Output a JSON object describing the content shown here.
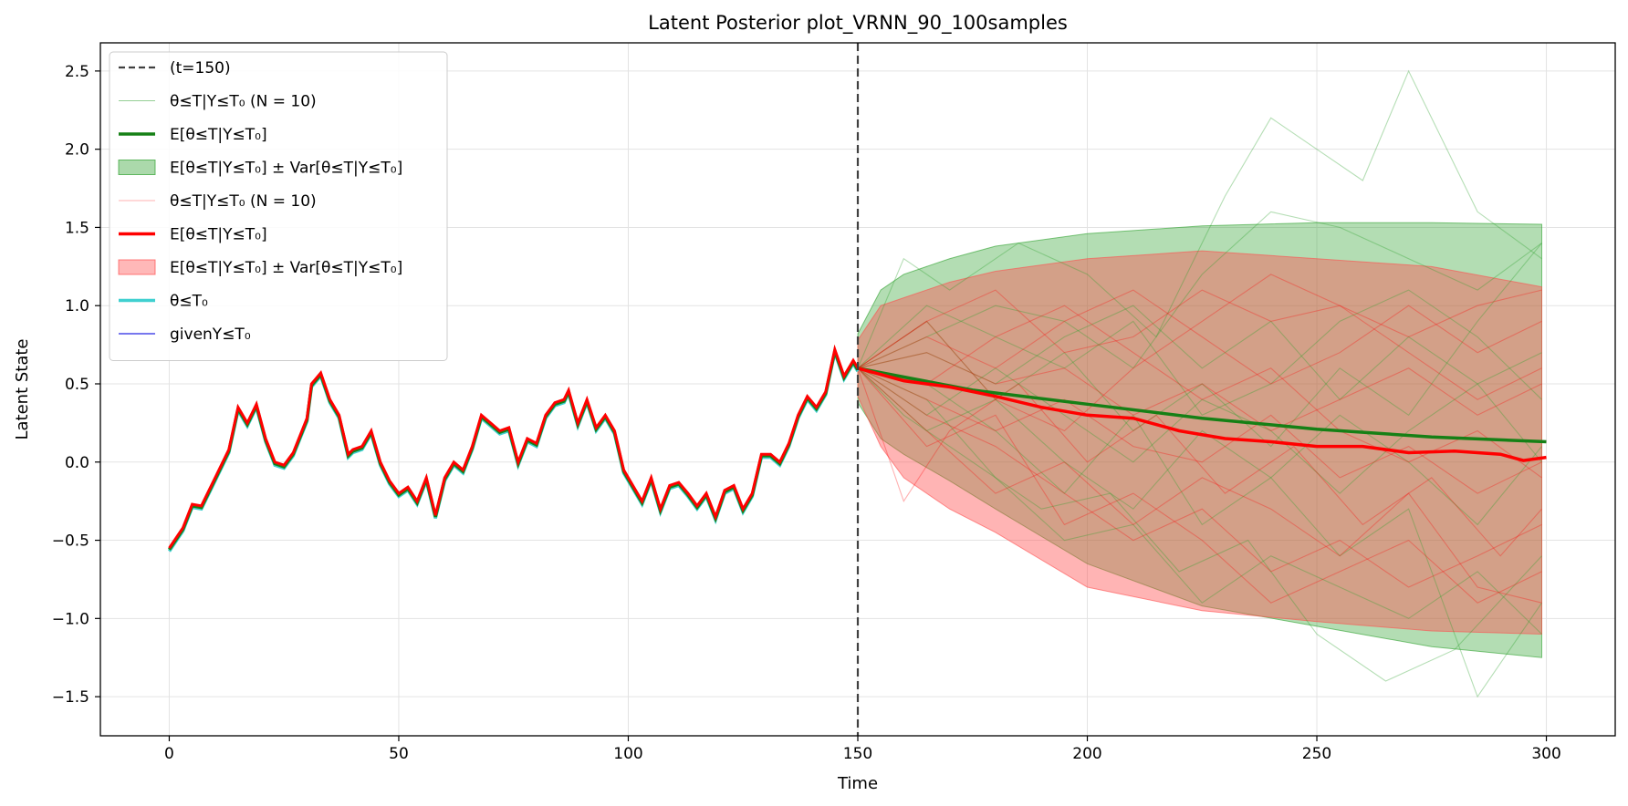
{
  "chart_data": {
    "type": "line",
    "title": "Latent Posterior plot_VRNN_90_100samples",
    "xlabel": "Time",
    "ylabel": "Latent State",
    "xlim": [
      -15,
      315
    ],
    "ylim": [
      -1.75,
      2.68
    ],
    "x_ticks": [
      0,
      50,
      100,
      150,
      200,
      250,
      300
    ],
    "x_tick_labels": [
      "0",
      "50",
      "100",
      "150",
      "200",
      "250",
      "300"
    ],
    "y_ticks": [
      -1.5,
      -1.0,
      -0.5,
      0.0,
      0.5,
      1.0,
      1.5,
      2.0,
      2.5
    ],
    "y_tick_labels": [
      "−1.5",
      "−1.0",
      "−0.5",
      "0.0",
      "0.5",
      "1.0",
      "1.5",
      "2.0",
      "2.5"
    ],
    "grid": true,
    "legend_position": "upper-left",
    "vline": {
      "x": 150,
      "label": "(t=150)",
      "color": "#404040"
    },
    "legend": [
      {
        "kind": "dashed",
        "color": "#404040",
        "label": "(t=150)"
      },
      {
        "kind": "thin",
        "color": "#2ca02c",
        "label": "θ≤T|Y≤T₀ (N = 10)"
      },
      {
        "kind": "thick",
        "color": "#168016",
        "label": "E[θ≤T|Y≤T₀]"
      },
      {
        "kind": "patch",
        "color": "#2ca02c",
        "label": "E[θ≤T|Y≤T₀] ± Var[θ≤T|Y≤T₀]"
      },
      {
        "kind": "thin",
        "color": "#ff6666",
        "label": "θ≤T|Y≤T₀ (N = 10)"
      },
      {
        "kind": "thick",
        "color": "#ff0000",
        "label": "E[θ≤T|Y≤T₀]"
      },
      {
        "kind": "patch",
        "color": "#ff4d4d",
        "label": "E[θ≤T|Y≤T₀] ± Var[θ≤T|Y≤T₀]"
      },
      {
        "kind": "thick",
        "color": "#40d0d0",
        "label": "θ≤T₀"
      },
      {
        "kind": "medium",
        "color": "#7777ee",
        "label": "givenY≤T₀"
      }
    ],
    "colors": {
      "green_mean": "#168016",
      "green_band": "#2ca02c",
      "red_mean": "#ff0000",
      "red_band": "#ff4d4d",
      "cyan": "#40d0d0",
      "blue": "#7777ee",
      "vline": "#404040"
    },
    "observed": {
      "x": [
        0,
        3,
        5,
        7,
        10,
        13,
        15,
        17,
        19,
        21,
        23,
        25,
        27,
        30,
        31,
        33,
        35,
        37,
        39,
        40,
        42,
        44,
        46,
        48,
        50,
        52,
        54,
        56,
        58,
        60,
        62,
        64,
        66,
        68,
        70,
        72,
        74,
        76,
        78,
        80,
        82,
        84,
        86,
        87,
        89,
        91,
        93,
        95,
        97,
        99,
        101,
        103,
        105,
        107,
        109,
        111,
        113,
        115,
        117,
        119,
        121,
        123,
        125,
        127,
        129,
        131,
        133,
        135,
        137,
        139,
        141,
        143,
        145,
        147,
        149,
        150
      ],
      "y": [
        -0.55,
        -0.42,
        -0.27,
        -0.28,
        -0.1,
        0.08,
        0.35,
        0.25,
        0.37,
        0.15,
        0.0,
        -0.02,
        0.06,
        0.28,
        0.5,
        0.57,
        0.4,
        0.3,
        0.05,
        0.08,
        0.1,
        0.2,
        0.0,
        -0.12,
        -0.2,
        -0.16,
        -0.25,
        -0.1,
        -0.34,
        -0.1,
        0.0,
        -0.05,
        0.1,
        0.3,
        0.25,
        0.2,
        0.22,
        0.0,
        0.15,
        0.12,
        0.3,
        0.38,
        0.4,
        0.46,
        0.25,
        0.4,
        0.22,
        0.3,
        0.2,
        -0.05,
        -0.15,
        -0.25,
        -0.1,
        -0.3,
        -0.15,
        -0.13,
        -0.2,
        -0.28,
        -0.2,
        -0.35,
        -0.18,
        -0.15,
        -0.3,
        -0.2,
        0.05,
        0.05,
        0.0,
        0.12,
        0.3,
        0.42,
        0.35,
        0.45,
        0.72,
        0.55,
        0.65,
        0.6
      ]
    },
    "green_mean": {
      "x": [
        150,
        175,
        200,
        225,
        250,
        275,
        300
      ],
      "y": [
        0.6,
        0.46,
        0.37,
        0.28,
        0.21,
        0.16,
        0.13
      ]
    },
    "green_band": {
      "x": [
        150,
        155,
        160,
        170,
        180,
        200,
        225,
        250,
        275,
        299
      ],
      "upper": [
        0.82,
        1.1,
        1.2,
        1.3,
        1.38,
        1.46,
        1.51,
        1.53,
        1.53,
        1.52
      ],
      "lower": [
        0.38,
        0.15,
        0.05,
        -0.12,
        -0.3,
        -0.65,
        -0.92,
        -1.05,
        -1.18,
        -1.25
      ]
    },
    "red_mean": {
      "x": [
        150,
        160,
        170,
        180,
        190,
        200,
        210,
        220,
        230,
        240,
        250,
        260,
        270,
        280,
        290,
        295,
        300
      ],
      "y": [
        0.6,
        0.52,
        0.48,
        0.42,
        0.35,
        0.3,
        0.28,
        0.2,
        0.15,
        0.13,
        0.1,
        0.1,
        0.06,
        0.07,
        0.05,
        0.01,
        0.03
      ]
    },
    "red_band": {
      "x": [
        150,
        155,
        160,
        170,
        180,
        200,
        225,
        250,
        275,
        299
      ],
      "upper": [
        0.78,
        1.0,
        1.05,
        1.15,
        1.22,
        1.3,
        1.35,
        1.3,
        1.25,
        1.12
      ],
      "lower": [
        0.42,
        0.1,
        -0.1,
        -0.3,
        -0.45,
        -0.8,
        -0.95,
        -1.02,
        -1.08,
        -1.1
      ]
    },
    "green_samples": [
      {
        "x": [
          150,
          160,
          170,
          185,
          200,
          215,
          230,
          240,
          250,
          260,
          270,
          285,
          299
        ],
        "y": [
          0.6,
          1.3,
          1.1,
          1.4,
          1.2,
          0.8,
          1.7,
          2.2,
          2.0,
          1.8,
          2.5,
          1.6,
          1.3
        ]
      },
      {
        "x": [
          150,
          165,
          180,
          195,
          210,
          225,
          240,
          255,
          270,
          285,
          299
        ],
        "y": [
          0.6,
          0.9,
          0.4,
          0.7,
          0.2,
          0.5,
          0.1,
          0.6,
          0.3,
          0.9,
          1.4
        ]
      },
      {
        "x": [
          150,
          160,
          175,
          190,
          205,
          220,
          235,
          250,
          265,
          280,
          299
        ],
        "y": [
          0.6,
          0.3,
          0.0,
          -0.3,
          -0.2,
          -0.7,
          -0.5,
          -1.1,
          -1.4,
          -1.2,
          -0.6
        ]
      },
      {
        "x": [
          150,
          165,
          180,
          195,
          210,
          225,
          240,
          255,
          270,
          285,
          299
        ],
        "y": [
          0.6,
          0.5,
          0.2,
          -0.2,
          0.3,
          -0.4,
          -0.1,
          -0.6,
          -0.3,
          -1.5,
          -0.9
        ]
      },
      {
        "x": [
          150,
          165,
          180,
          195,
          210,
          225,
          240,
          255,
          270,
          285,
          299
        ],
        "y": [
          0.6,
          0.8,
          1.0,
          0.9,
          0.6,
          1.2,
          1.6,
          1.5,
          1.3,
          1.1,
          1.4
        ]
      },
      {
        "x": [
          150,
          165,
          180,
          195,
          210,
          225,
          240,
          255,
          270,
          285,
          299
        ],
        "y": [
          0.6,
          0.2,
          0.4,
          0.0,
          -0.3,
          0.2,
          -0.1,
          0.3,
          0.0,
          -0.4,
          0.1
        ]
      },
      {
        "x": [
          150,
          165,
          180,
          195,
          210,
          225,
          240,
          255,
          270,
          285,
          299
        ],
        "y": [
          0.6,
          0.7,
          0.5,
          0.8,
          1.0,
          0.6,
          0.9,
          0.4,
          0.8,
          0.5,
          0.7
        ]
      },
      {
        "x": [
          150,
          165,
          180,
          195,
          210,
          225,
          240,
          255,
          270,
          285,
          299
        ],
        "y": [
          0.6,
          0.4,
          -0.1,
          -0.5,
          -0.4,
          -0.9,
          -0.6,
          -0.8,
          -1.0,
          -0.7,
          -1.1
        ]
      },
      {
        "x": [
          150,
          165,
          180,
          195,
          210,
          225,
          240,
          255,
          270,
          285,
          299
        ],
        "y": [
          0.6,
          1.0,
          0.8,
          0.6,
          0.9,
          0.3,
          0.5,
          0.9,
          1.1,
          0.8,
          0.4
        ]
      },
      {
        "x": [
          150,
          165,
          180,
          195,
          210,
          225,
          240,
          255,
          270,
          285,
          299
        ],
        "y": [
          0.6,
          0.3,
          0.6,
          0.3,
          0.0,
          0.4,
          0.2,
          -0.2,
          0.2,
          0.5,
          0.0
        ]
      }
    ],
    "red_samples": [
      {
        "x": [
          150,
          160,
          170,
          185,
          200,
          215,
          230,
          245,
          260,
          275,
          290,
          299
        ],
        "y": [
          0.6,
          -0.25,
          0.2,
          0.5,
          0.0,
          0.3,
          -0.2,
          0.1,
          -0.4,
          -0.1,
          -0.6,
          -0.3
        ]
      },
      {
        "x": [
          150,
          165,
          180,
          195,
          210,
          225,
          240,
          255,
          270,
          285,
          299
        ],
        "y": [
          0.6,
          0.9,
          1.1,
          0.7,
          0.8,
          1.1,
          0.9,
          1.0,
          0.8,
          1.0,
          1.1
        ]
      },
      {
        "x": [
          150,
          165,
          180,
          195,
          210,
          225,
          240,
          255,
          270,
          285,
          299
        ],
        "y": [
          0.6,
          0.3,
          0.1,
          -0.2,
          -0.5,
          -0.3,
          -0.7,
          -0.5,
          -0.8,
          -0.6,
          -0.4
        ]
      },
      {
        "x": [
          150,
          165,
          180,
          195,
          210,
          225,
          240,
          255,
          270,
          285,
          299
        ],
        "y": [
          0.6,
          0.7,
          0.5,
          0.6,
          0.3,
          0.5,
          0.2,
          0.4,
          0.6,
          0.3,
          0.5
        ]
      },
      {
        "x": [
          150,
          165,
          180,
          195,
          210,
          225,
          240,
          255,
          270,
          285,
          299
        ],
        "y": [
          0.6,
          0.5,
          0.8,
          1.0,
          0.7,
          0.4,
          0.6,
          0.2,
          0.0,
          0.2,
          -0.1
        ]
      },
      {
        "x": [
          150,
          165,
          180,
          195,
          210,
          225,
          240,
          255,
          270,
          285,
          299
        ],
        "y": [
          0.6,
          0.2,
          -0.2,
          0.0,
          -0.4,
          -0.1,
          -0.3,
          -0.6,
          -0.2,
          -0.8,
          -0.9
        ]
      },
      {
        "x": [
          150,
          165,
          180,
          195,
          210,
          225,
          240,
          255,
          270,
          285,
          299
        ],
        "y": [
          0.6,
          0.8,
          0.6,
          0.9,
          1.1,
          0.8,
          0.5,
          0.7,
          1.0,
          0.7,
          0.9
        ]
      },
      {
        "x": [
          150,
          165,
          180,
          195,
          210,
          225,
          240,
          255,
          270,
          285,
          299
        ],
        "y": [
          0.6,
          0.4,
          0.2,
          0.4,
          0.1,
          0.0,
          0.3,
          -0.1,
          0.1,
          -0.2,
          0.0
        ]
      },
      {
        "x": [
          150,
          165,
          180,
          195,
          210,
          225,
          240,
          255,
          270,
          285,
          299
        ],
        "y": [
          0.6,
          0.1,
          0.3,
          -0.4,
          -0.2,
          -0.5,
          -0.9,
          -0.7,
          -0.5,
          -0.9,
          -0.7
        ]
      },
      {
        "x": [
          150,
          165,
          180,
          195,
          210,
          225,
          240,
          255,
          270,
          285,
          299
        ],
        "y": [
          0.6,
          0.9,
          0.4,
          0.2,
          0.6,
          0.9,
          1.2,
          1.0,
          0.7,
          0.4,
          0.6
        ]
      }
    ]
  }
}
